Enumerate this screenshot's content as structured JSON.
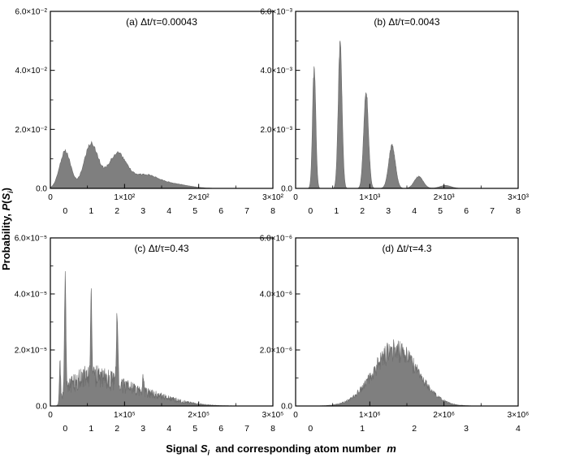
{
  "figure": {
    "background": "#ffffff",
    "bar_color": "#7f7f7f",
    "bar_edge": "#6b6b6b",
    "axis_color": "#000000",
    "grid": false,
    "ylabel": {
      "prefix": "Probability, ",
      "p": "P",
      "open": "(",
      "s": "S",
      "sub": "i",
      "close": ")"
    },
    "xlabel": {
      "part1": "Signal ",
      "s": "S",
      "sub": "i",
      "part2": "  and corresponding atom number  ",
      "m": "m"
    }
  },
  "chart_data": [
    {
      "id": "a",
      "type": "histogram",
      "title": "(a) Δt/τ=0.00043",
      "xlim": [
        0,
        3
      ],
      "ylim": [
        0,
        6
      ],
      "x_unit": "1e2",
      "y_unit": "1e-2",
      "x_tick_values": [
        0,
        1,
        2,
        3
      ],
      "x_tick_labels": [
        "0",
        "1×10²",
        "2×10²",
        "3×10²"
      ],
      "x_minor": [
        0.5,
        1.5,
        2.5
      ],
      "y_tick_values": [
        0,
        2,
        4,
        6
      ],
      "y_tick_labels": [
        "0.0",
        "2.0×10⁻²",
        "4.0×10⁻²",
        "6.0×10⁻²"
      ],
      "y_minor": [
        1,
        3,
        5
      ],
      "atom_labels": [
        "0",
        "1",
        "2",
        "3",
        "4",
        "5",
        "6",
        "7",
        "8"
      ],
      "atom_start": 0.0667,
      "atom_step": 0.1167,
      "peaks": [
        {
          "c": 0.2,
          "h": 1.25,
          "w": 0.075
        },
        {
          "c": 0.55,
          "h": 1.5,
          "w": 0.095
        },
        {
          "c": 0.9,
          "h": 1.15,
          "w": 0.125
        },
        {
          "c": 1.27,
          "h": 0.42,
          "w": 0.17
        },
        {
          "c": 1.63,
          "h": 0.15,
          "w": 0.22
        }
      ],
      "background": [],
      "noise": {
        "peak_rel": 0.05,
        "rel": 0,
        "seed": 11
      },
      "samples": 340
    },
    {
      "id": "b",
      "type": "histogram",
      "title": "(b) Δt/τ=0.0043",
      "xlim": [
        0,
        3
      ],
      "ylim": [
        0,
        6
      ],
      "x_unit": "1e3",
      "y_unit": "1e-3",
      "x_tick_values": [
        0,
        1,
        2,
        3
      ],
      "x_tick_labels": [
        "0",
        "1×10³",
        "2×10³",
        "3×10³"
      ],
      "x_minor": [
        0.5,
        1.5,
        2.5
      ],
      "y_tick_values": [
        0,
        2,
        4,
        6
      ],
      "y_tick_labels": [
        "0.0",
        "2.0×10⁻³",
        "4.0×10⁻³",
        "6.0×10⁻³"
      ],
      "y_minor": [
        1,
        3,
        5
      ],
      "atom_labels": [
        "0",
        "1",
        "2",
        "3",
        "4",
        "5",
        "6",
        "7",
        "8"
      ],
      "atom_start": 0.0667,
      "atom_step": 0.1167,
      "peaks": [
        {
          "c": 0.25,
          "h": 4.05,
          "w": 0.022
        },
        {
          "c": 0.6,
          "h": 4.9,
          "w": 0.026
        },
        {
          "c": 0.95,
          "h": 3.3,
          "w": 0.032
        },
        {
          "c": 1.3,
          "h": 1.45,
          "w": 0.045
        },
        {
          "c": 1.66,
          "h": 0.4,
          "w": 0.06
        },
        {
          "c": 2.02,
          "h": 0.1,
          "w": 0.075
        }
      ],
      "background": [],
      "noise": {
        "peak_rel": 0.04,
        "rel": 0,
        "seed": 22
      },
      "samples": 700
    },
    {
      "id": "c",
      "type": "histogram",
      "title": "(c) Δt/τ=0.43",
      "xlim": [
        0,
        3
      ],
      "ylim": [
        0,
        6
      ],
      "x_unit": "1e5",
      "y_unit": "1e-5",
      "x_tick_values": [
        0,
        1,
        2,
        3
      ],
      "x_tick_labels": [
        "0",
        "1×10⁵",
        "2×10⁵",
        "3×10⁵"
      ],
      "x_minor": [
        0.5,
        1.5,
        2.5
      ],
      "y_tick_values": [
        0,
        2,
        4,
        6
      ],
      "y_tick_labels": [
        "0.0",
        "2.0×10⁻⁵",
        "4.0×10⁻⁵",
        "6.0×10⁻⁵"
      ],
      "y_minor": [
        1,
        3,
        5
      ],
      "atom_labels": [
        "0",
        "1",
        "2",
        "3",
        "4",
        "5",
        "6",
        "7",
        "8"
      ],
      "atom_start": 0.0667,
      "atom_step": 0.1167,
      "x_start": 0.08,
      "peaks": [
        {
          "c": 0.13,
          "h": 1.4,
          "w": 0.008
        },
        {
          "c": 0.2,
          "h": 4.0,
          "w": 0.01
        },
        {
          "c": 0.55,
          "h": 2.8,
          "w": 0.01
        },
        {
          "c": 0.9,
          "h": 2.35,
          "w": 0.01
        },
        {
          "c": 1.25,
          "h": 0.55,
          "w": 0.01
        }
      ],
      "background": [
        {
          "c": 0.5,
          "h": 0.85,
          "w": 0.3
        },
        {
          "c": 1.1,
          "h": 0.5,
          "w": 0.45
        }
      ],
      "noise": {
        "peak_rel": 0.05,
        "rel": 0.4,
        "seed": 33
      },
      "samples": 750
    },
    {
      "id": "d",
      "type": "histogram",
      "title": "(d) Δt/τ=4.3",
      "xlim": [
        0,
        3
      ],
      "ylim": [
        0,
        6
      ],
      "x_unit": "1e6",
      "y_unit": "1e-6",
      "x_tick_values": [
        0,
        1,
        2,
        3
      ],
      "x_tick_labels": [
        "0",
        "1×10⁶",
        "2×10⁶",
        "3×10⁶"
      ],
      "x_minor": [
        0.5,
        1.5,
        2.5
      ],
      "y_tick_values": [
        0,
        2,
        4,
        6
      ],
      "y_tick_labels": [
        "0.0",
        "2.0×10⁻⁶",
        "4.0×10⁻⁶",
        "6.0×10⁻⁶"
      ],
      "y_minor": [
        1,
        3,
        5
      ],
      "atom_labels": [
        "0",
        "1",
        "2",
        "3",
        "4"
      ],
      "atom_start": 0.0667,
      "atom_step": 0.2333,
      "peaks": [],
      "background": [
        {
          "c": 1.35,
          "h": 2.0,
          "w": 0.3
        }
      ],
      "noise": {
        "peak_rel": 0,
        "rel": 0.22,
        "seed": 44
      },
      "samples": 500
    }
  ]
}
